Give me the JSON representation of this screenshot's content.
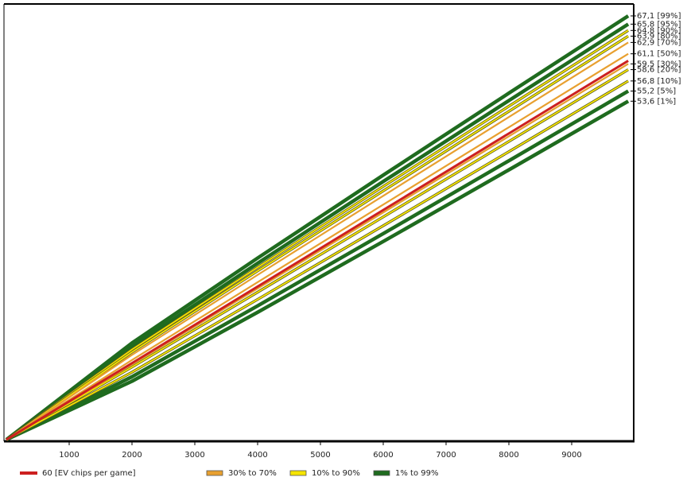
{
  "chart_data": {
    "type": "line",
    "x": [
      0,
      2000,
      4000,
      6000,
      8000,
      9900
    ],
    "xlim": [
      0,
      10000
    ],
    "xticks": [
      1000,
      2000,
      3000,
      4000,
      5000,
      6000,
      7000,
      8000,
      9000
    ],
    "ylim": [
      0,
      683000
    ],
    "series": [
      {
        "name": "67,1 [99%]",
        "color": "#1f6b1f",
        "values": [
          0,
          151600,
          284700,
          414700,
          543200,
          664300
        ]
      },
      {
        "name": "65,8 [95%]",
        "color": "#1f6b1f",
        "values": [
          0,
          145800,
          276500,
          404700,
          531600,
          651400
        ]
      },
      {
        "name": "64,8 [90%]",
        "color": "#f5e400",
        "values": [
          0,
          141300,
          270200,
          397000,
          522700,
          641500
        ]
      },
      {
        "name": "63,9 [80%]",
        "color": "#f5e400",
        "values": [
          0,
          137300,
          264600,
          390000,
          514700,
          632600
        ]
      },
      {
        "name": "62,9 [70%]",
        "color": "#e8a030",
        "values": [
          0,
          132900,
          258300,
          382300,
          505800,
          622700
        ]
      },
      {
        "name": "61,1 [50%]",
        "color": "#e8a030",
        "values": [
          0,
          124900,
          246900,
          368500,
          489800,
          604900
        ]
      },
      {
        "name": "59,5 [30%]",
        "color": "#e8a030",
        "values": [
          0,
          117800,
          236900,
          356100,
          475500,
          589100
        ]
      },
      {
        "name": "58,6 [20%]",
        "color": "#f5e400",
        "values": [
          0,
          113800,
          231200,
          349200,
          467500,
          580100
        ]
      },
      {
        "name": "56,8 [10%]",
        "color": "#f5e400",
        "values": [
          0,
          105800,
          219900,
          335400,
          451500,
          562300
        ]
      },
      {
        "name": "55,2 [5%]",
        "color": "#1f6b1f",
        "values": [
          0,
          98700,
          209800,
          323000,
          437300,
          546500
        ]
      },
      {
        "name": "53,6 [1%]",
        "color": "#1f6b1f",
        "values": [
          0,
          91600,
          199700,
          310700,
          423000,
          530600
        ]
      },
      {
        "name": "60 [EV chips per game]",
        "color": "#cc2020",
        "values": [
          0,
          120000,
          240000,
          360000,
          480000,
          594000
        ]
      }
    ],
    "bands": [
      {
        "label": "30% to 70%",
        "color": "#e8a030"
      },
      {
        "label": "10% to 90%",
        "color": "#f5e400"
      },
      {
        "label": "1% to 99%",
        "color": "#1f6b1f"
      }
    ]
  }
}
